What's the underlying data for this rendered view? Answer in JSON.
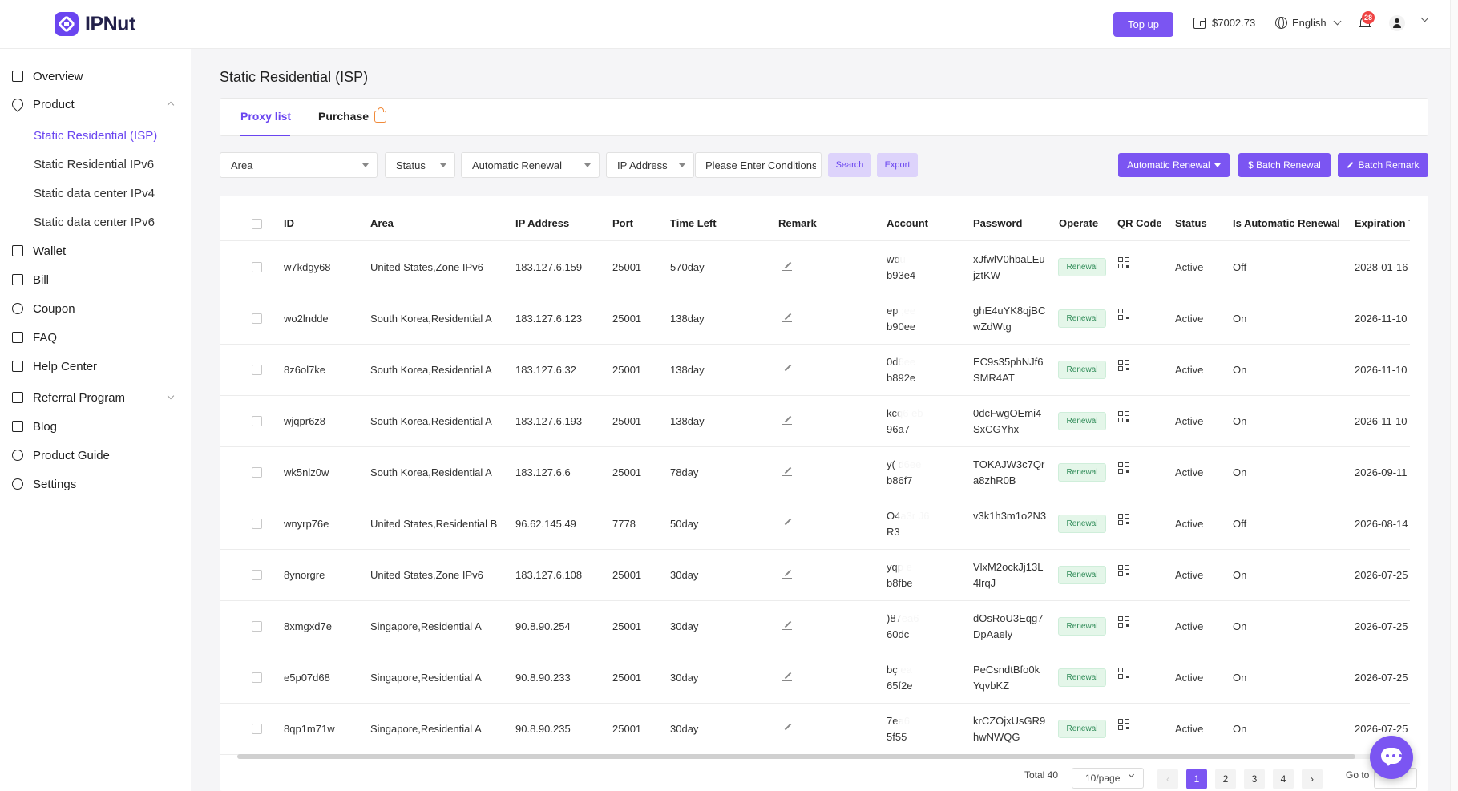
{
  "app": {
    "brand": "IPNut"
  },
  "header": {
    "topup_label": "Top up",
    "balance": "$7002.73",
    "language": "English",
    "notification_count": "28"
  },
  "sidebar": {
    "overview": "Overview",
    "product": "Product",
    "sub_items": [
      "Static Residential (ISP)",
      "Static Residential IPv6",
      "Static data center IPv4",
      "Static data center IPv6"
    ],
    "wallet": "Wallet",
    "bill": "Bill",
    "coupon": "Coupon",
    "faq": "FAQ",
    "help_center": "Help Center",
    "referral": "Referral Program",
    "blog": "Blog",
    "product_guide": "Product Guide",
    "settings": "Settings"
  },
  "page": {
    "title": "Static Residential (ISP)",
    "tabs": [
      "Proxy list",
      "Purchase"
    ]
  },
  "filters": {
    "area": "Area",
    "status": "Status",
    "auto_renewal": "Automatic Renewal",
    "ip_address": "IP Address",
    "conditions_placeholder": "Please Enter Conditions",
    "search": "Search",
    "export": "Export",
    "auto_renewal_btn": "Automatic Renewal",
    "batch_renewal": "$ Batch Renewal",
    "batch_remark": "Batch Remark"
  },
  "table": {
    "headers": [
      "ID",
      "Area",
      "IP Address",
      "Port",
      "Time Left",
      "Remark",
      "Account",
      "Password",
      "Operate",
      "QR Code",
      "Status",
      "Is Automatic Renewal",
      "Expiration T"
    ],
    "renew_label": "Renewal",
    "rows": [
      {
        "id": "w7kdgy68",
        "area": "United States,Zone IPv6",
        "ip": "183.127.6.159",
        "port": "25001",
        "time_left": "570day",
        "acc1": "wou",
        "acc2": "b93e4",
        "pw1": "xJfwlV0hbaLEu",
        "pw2": "jztKW",
        "status": "Active",
        "auto": "Off",
        "exp": "2028-01-16"
      },
      {
        "id": "wo2lndde",
        "area": "South Korea,Residential A",
        "ip": "183.127.6.123",
        "port": "25001",
        "time_left": "138day",
        "acc1": "ep          ;ee",
        "acc2": "b90ee",
        "pw1": "ghE4uYK8qjBC",
        "pw2": "wZdWtg",
        "status": "Active",
        "auto": "On",
        "exp": "2026-11-10"
      },
      {
        "id": "8z6ol7ke",
        "area": "South Korea,Residential A",
        "ip": "183.127.6.32",
        "port": "25001",
        "time_left": "138day",
        "acc1": "           0d6ee",
        "acc2": "b892e",
        "pw1": "EC9s35phNJf6",
        "pw2": "SMR4AT",
        "status": "Active",
        "auto": "On",
        "exp": "2026-11-10"
      },
      {
        "id": "wjqpr6z8",
        "area": "South Korea,Residential A",
        "ip": "183.127.6.193",
        "port": "25001",
        "time_left": "138day",
        "acc1": "kcq6          eb",
        "acc2": "96a7",
        "pw1": "0dcFwgOEmi4",
        "pw2": "SxCGYhx",
        "status": "Active",
        "auto": "On",
        "exp": "2026-11-10"
      },
      {
        "id": "wk5nlz0w",
        "area": "South Korea,Residential A",
        "ip": "183.127.6.6",
        "port": "25001",
        "time_left": "78day",
        "acc1": "y(          d6ee",
        "acc2": "b86f7",
        "pw1": "TOKAJW3c7Qr",
        "pw2": "a8zhR0B",
        "status": "Active",
        "auto": "On",
        "exp": "2026-09-11"
      },
      {
        "id": "wnyrp76e",
        "area": "United States,Residential B",
        "ip": "96.62.145.49",
        "port": "7778",
        "time_left": "50day",
        "acc1": "O4a3r          J6",
        "acc2": "R3",
        "pw1": "v3k1h3m1o2N3",
        "pw2": "",
        "status": "Active",
        "auto": "Off",
        "exp": "2026-08-14"
      },
      {
        "id": "8ynorgre",
        "area": "United States,Zone IPv6",
        "ip": "183.127.6.108",
        "port": "25001",
        "time_left": "30day",
        "acc1": "yqp          e",
        "acc2": "b8fbe",
        "pw1": "VlxM2ockJj13L",
        "pw2": "4lrqJ",
        "status": "Active",
        "auto": "On",
        "exp": "2026-07-25"
      },
      {
        "id": "8xmgxd7e",
        "area": "Singapore,Residential A",
        "ip": "90.8.90.254",
        "port": "25001",
        "time_left": "30day",
        "acc1": "           )87ea6",
        "acc2": "60dc",
        "pw1": "dOsRoU3Eqg7",
        "pw2": "DpAaely",
        "status": "Active",
        "auto": "On",
        "exp": "2026-07-25"
      },
      {
        "id": "e5p07d68",
        "area": "Singapore,Residential A",
        "ip": "90.8.90.233",
        "port": "25001",
        "time_left": "30day",
        "acc1": "bç          ea",
        "acc2": "65f2e",
        "pw1": "PeCsndtBfo0k",
        "pw2": "YqvbKZ",
        "status": "Active",
        "auto": "On",
        "exp": "2026-07-25"
      },
      {
        "id": "8qp1m71w",
        "area": "Singapore,Residential A",
        "ip": "90.8.90.235",
        "port": "25001",
        "time_left": "30day",
        "acc1": "           7ea6",
        "acc2": "5f55",
        "pw1": "krCZOjxUsGR9",
        "pw2": "hwNWQG",
        "status": "Active",
        "auto": "On",
        "exp": "2026-07-25"
      }
    ]
  },
  "pagination": {
    "total": "Total 40",
    "page_size": "10/page",
    "pages": [
      "1",
      "2",
      "3",
      "4"
    ],
    "goto": "Go to"
  },
  "colors": {
    "accent": "#7b55f2",
    "active_tab": "#6a45f0",
    "renew_bg": "#e4f6e9"
  }
}
